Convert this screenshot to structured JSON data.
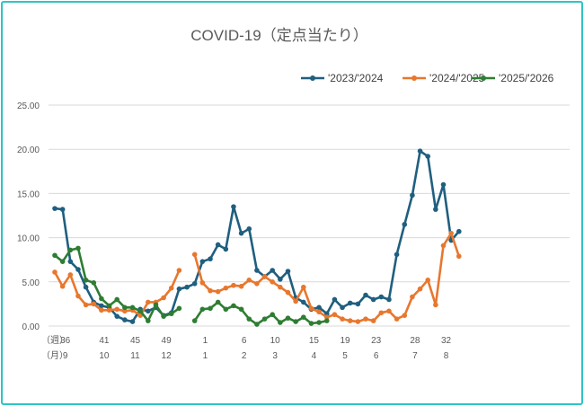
{
  "chart_data": {
    "type": "line",
    "title": "COVID-19（定点当たり）",
    "xlabel": "",
    "ylabel": "",
    "ylim": [
      0,
      25
    ],
    "yticks": [
      "0.00",
      "5.00",
      "10.00",
      "15.00",
      "20.00",
      "25.00"
    ],
    "grid": true,
    "legend_position": "top-right",
    "x_row_labels": {
      "week": "（週）",
      "month": "（月）"
    },
    "x_week_labels": [
      {
        "label": "36",
        "index": 1
      },
      {
        "label": "41",
        "index": 6
      },
      {
        "label": "45",
        "index": 10
      },
      {
        "label": "49",
        "index": 14
      },
      {
        "label": "1",
        "index": 19
      },
      {
        "label": "6",
        "index": 24
      },
      {
        "label": "10",
        "index": 28
      },
      {
        "label": "15",
        "index": 33
      },
      {
        "label": "19",
        "index": 37
      },
      {
        "label": "23",
        "index": 41
      },
      {
        "label": "28",
        "index": 46
      },
      {
        "label": "32",
        "index": 50
      }
    ],
    "x_month_labels": [
      {
        "label": "9",
        "index": 1
      },
      {
        "label": "10",
        "index": 6
      },
      {
        "label": "11",
        "index": 10
      },
      {
        "label": "12",
        "index": 14
      },
      {
        "label": "1",
        "index": 19
      },
      {
        "label": "2",
        "index": 24
      },
      {
        "label": "3",
        "index": 28
      },
      {
        "label": "4",
        "index": 33
      },
      {
        "label": "5",
        "index": 37
      },
      {
        "label": "6",
        "index": 41
      },
      {
        "label": "7",
        "index": 46
      },
      {
        "label": "8",
        "index": 50
      }
    ],
    "series": [
      {
        "name": "'2023/'2024",
        "color": "#1f5f7f",
        "values": [
          13.3,
          13.2,
          7.3,
          6.4,
          4.4,
          2.7,
          2.3,
          2.1,
          1.1,
          0.7,
          0.5,
          1.9,
          1.7,
          2.1,
          1.2,
          1.5,
          4.2,
          4.4,
          4.8,
          7.3,
          7.6,
          9.2,
          8.7,
          13.5,
          10.5,
          11.0,
          6.3,
          5.6,
          6.3,
          5.3,
          6.2,
          3.2,
          2.7,
          1.9,
          2.1,
          1.4,
          3.0,
          2.1,
          2.6,
          2.5,
          3.5,
          3.0,
          3.3,
          3.0,
          8.1,
          11.5,
          14.8,
          19.8,
          19.2,
          13.2,
          16.0,
          9.7,
          10.7
        ]
      },
      {
        "name": "'2024/'2025",
        "color": "#e8772e",
        "values": [
          6.1,
          4.5,
          5.8,
          3.4,
          2.4,
          2.5,
          1.8,
          1.8,
          1.9,
          1.7,
          1.8,
          1.2,
          2.7,
          2.7,
          3.2,
          4.3,
          6.3,
          null,
          8.1,
          4.9,
          4.0,
          3.9,
          4.3,
          4.6,
          4.5,
          5.2,
          4.8,
          5.6,
          5.0,
          4.4,
          3.8,
          2.8,
          4.4,
          2.0,
          1.6,
          1.0,
          1.3,
          0.8,
          0.6,
          0.5,
          0.8,
          0.6,
          1.5,
          1.7,
          0.8,
          1.2,
          3.3,
          4.2,
          5.2,
          2.4,
          9.1,
          10.5,
          7.9
        ]
      },
      {
        "name": "'2025/'2026",
        "color": "#2e7d32",
        "values": [
          8.0,
          7.3,
          8.6,
          8.8,
          5.2,
          4.9,
          3.1,
          2.3,
          3.0,
          2.1,
          2.1,
          1.7,
          0.6,
          2.4,
          1.1,
          1.4,
          2.0,
          null,
          0.6,
          1.9,
          2.0,
          2.7,
          1.9,
          2.3,
          1.9,
          0.8,
          0.2,
          0.8,
          1.3,
          0.4,
          0.9,
          0.5,
          1.0,
          0.3,
          0.4,
          0.6,
          null,
          null,
          null,
          null,
          null,
          null,
          null,
          null,
          null,
          null,
          null,
          null,
          null,
          null,
          null,
          null,
          null
        ]
      }
    ]
  }
}
